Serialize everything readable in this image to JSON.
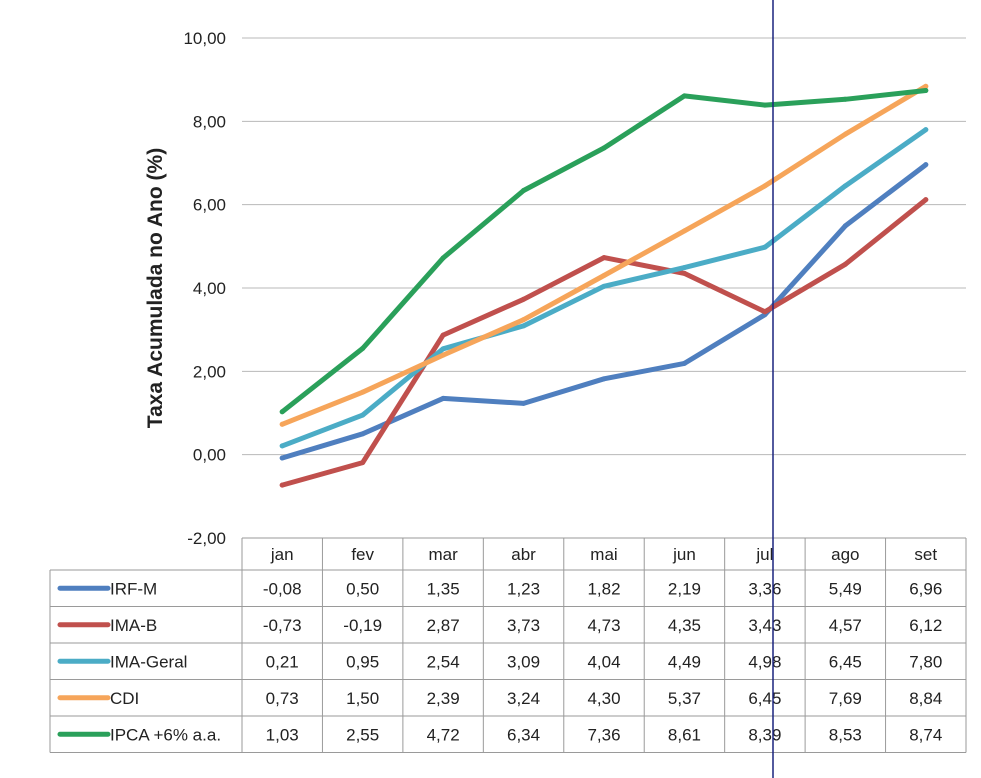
{
  "chart_data": {
    "type": "line",
    "title": "",
    "ylabel": "Taxa Acumulada no Ano (%)",
    "xlabel": "",
    "categories": [
      "jan",
      "fev",
      "mar",
      "abr",
      "mai",
      "jun",
      "jul",
      "ago",
      "set"
    ],
    "ylim": [
      -2,
      10
    ],
    "yticks": [
      "-2,00",
      "0,00",
      "2,00",
      "4,00",
      "6,00",
      "8,00",
      "10,00"
    ],
    "grid": true,
    "legend": "data-table",
    "series": [
      {
        "name": "IRF-M",
        "color": "#4f7fbf",
        "values": [
          -0.08,
          0.5,
          1.35,
          1.23,
          1.82,
          2.19,
          3.36,
          5.49,
          6.96
        ],
        "labels": [
          "-0,08",
          "0,50",
          "1,35",
          "1,23",
          "1,82",
          "2,19",
          "3,36",
          "5,49",
          "6,96"
        ]
      },
      {
        "name": "IMA-B",
        "color": "#c0504d",
        "values": [
          -0.73,
          -0.19,
          2.87,
          3.73,
          4.73,
          4.35,
          3.43,
          4.57,
          6.12
        ],
        "labels": [
          "-0,73",
          "-0,19",
          "2,87",
          "3,73",
          "4,73",
          "4,35",
          "3,43",
          "4,57",
          "6,12"
        ]
      },
      {
        "name": "IMA-Geral",
        "color": "#4bacc6",
        "values": [
          0.21,
          0.95,
          2.54,
          3.09,
          4.04,
          4.49,
          4.98,
          6.45,
          7.8
        ],
        "labels": [
          "0,21",
          "0,95",
          "2,54",
          "3,09",
          "4,04",
          "4,49",
          "4,98",
          "6,45",
          "7,80"
        ]
      },
      {
        "name": "CDI",
        "color": "#f6a55a",
        "values": [
          0.73,
          1.5,
          2.39,
          3.24,
          4.3,
          5.37,
          6.45,
          7.69,
          8.84
        ],
        "labels": [
          "0,73",
          "1,50",
          "2,39",
          "3,24",
          "4,30",
          "5,37",
          "6,45",
          "7,69",
          "8,84"
        ]
      },
      {
        "name": "IPCA +6% a.a.",
        "color": "#2aa05a",
        "values": [
          1.03,
          2.55,
          4.72,
          6.34,
          7.36,
          8.61,
          8.39,
          8.53,
          8.74
        ],
        "labels": [
          "1,03",
          "2,55",
          "4,72",
          "6,34",
          "7,36",
          "8,61",
          "8,39",
          "8,53",
          "8,74"
        ]
      }
    ]
  }
}
